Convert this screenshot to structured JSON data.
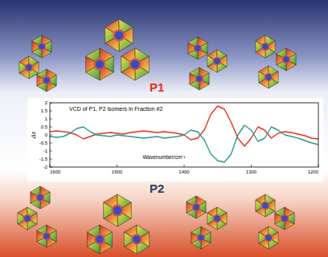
{
  "chart_data": {
    "type": "line",
    "title": "VCD of P1, P2 isomers in Fraction #2",
    "x_label": "Wavenumber/cm⁻¹",
    "y_label": "Δε",
    "x": [
      1600,
      1590,
      1580,
      1570,
      1560,
      1550,
      1540,
      1530,
      1520,
      1510,
      1500,
      1490,
      1480,
      1470,
      1460,
      1450,
      1440,
      1430,
      1420,
      1410,
      1400,
      1390,
      1380,
      1370,
      1360,
      1350,
      1340,
      1330,
      1320,
      1310,
      1300,
      1290,
      1280,
      1270,
      1260,
      1250,
      1240,
      1230,
      1220,
      1210,
      1200
    ],
    "series": [
      {
        "name": "P1",
        "color": "#e8301e",
        "values": [
          0.2,
          0.25,
          0.2,
          0.15,
          0.0,
          -0.25,
          -0.1,
          0.05,
          0.1,
          0.15,
          0.1,
          0.05,
          0.15,
          0.2,
          0.25,
          0.2,
          0.15,
          0.2,
          0.15,
          0.1,
          0.0,
          -0.3,
          -0.2,
          0.3,
          1.3,
          1.8,
          1.6,
          0.8,
          -0.2,
          -0.7,
          -0.2,
          0.5,
          0.3,
          -0.2,
          0.1,
          0.2,
          0.15,
          0.05,
          -0.05,
          -0.2,
          -0.25
        ]
      },
      {
        "name": "P2",
        "color": "#2a9a8e",
        "values": [
          -0.1,
          -0.15,
          -0.1,
          0.1,
          0.4,
          0.5,
          0.2,
          0.0,
          -0.05,
          -0.1,
          0.0,
          -0.05,
          -0.1,
          -0.15,
          -0.2,
          -0.15,
          -0.1,
          -0.2,
          -0.15,
          -0.1,
          0.0,
          0.3,
          0.2,
          -0.3,
          -1.2,
          -1.6,
          -1.7,
          -1.2,
          0.0,
          0.6,
          0.3,
          -0.4,
          -0.2,
          0.5,
          0.3,
          0.0,
          -0.1,
          -0.2,
          -0.35,
          -0.5,
          -0.6
        ]
      }
    ],
    "xlim": [
      1600,
      1200
    ],
    "xticks": [
      1600,
      1500,
      1400,
      1300,
      1200
    ],
    "ylim": [
      -2,
      2
    ],
    "yticks": [
      -2,
      -1.5,
      -1,
      -0.5,
      0,
      0.5,
      1,
      1.5,
      2
    ],
    "grid": false
  }
}
